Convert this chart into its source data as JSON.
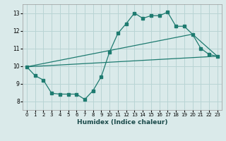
{
  "xlabel": "Humidex (Indice chaleur)",
  "bg_color": "#daeaea",
  "grid_color": "#b8d4d4",
  "line_color": "#1e7b70",
  "xlim": [
    -0.5,
    23.5
  ],
  "ylim": [
    7.5,
    13.5
  ],
  "xticks": [
    0,
    1,
    2,
    3,
    4,
    5,
    6,
    7,
    8,
    9,
    10,
    11,
    12,
    13,
    14,
    15,
    16,
    17,
    18,
    19,
    20,
    21,
    22,
    23
  ],
  "yticks": [
    8,
    9,
    10,
    11,
    12,
    13
  ],
  "line1_x": [
    0,
    1,
    2,
    3,
    4,
    5,
    6,
    7,
    8,
    9,
    10,
    11,
    12,
    13,
    14,
    15,
    16,
    17,
    18,
    19,
    20,
    21,
    22,
    23
  ],
  "line1_y": [
    9.95,
    9.45,
    9.2,
    8.45,
    8.4,
    8.4,
    8.4,
    8.1,
    8.6,
    9.4,
    10.8,
    11.85,
    12.4,
    13.0,
    12.7,
    12.85,
    12.85,
    13.05,
    12.25,
    12.25,
    11.8,
    11.0,
    10.65,
    10.55
  ],
  "line2_x": [
    0,
    23
  ],
  "line2_y": [
    9.95,
    10.55
  ],
  "line3_x": [
    0,
    20,
    23
  ],
  "line3_y": [
    9.95,
    11.8,
    10.55
  ]
}
